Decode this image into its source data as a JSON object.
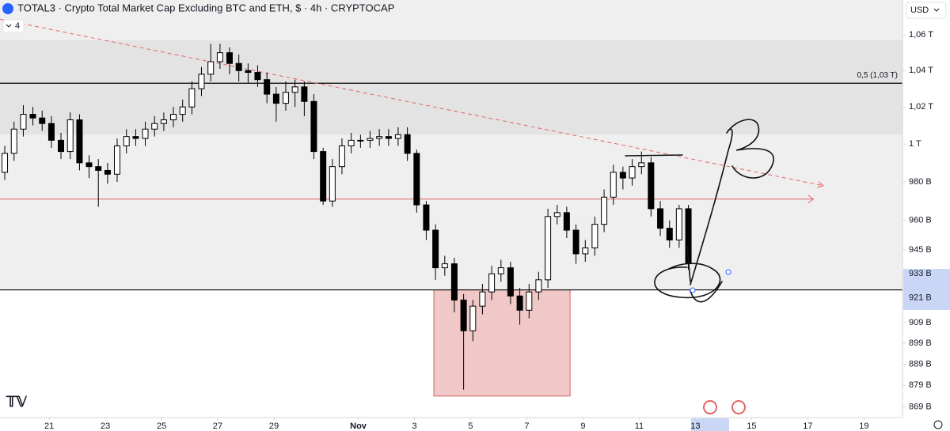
{
  "chart_data": {
    "type": "candlestick",
    "title": "TOTAL3 · Crypto Total Market Cap Excluding BTC and ETH, $ · 4h · CRYPTOCAP",
    "indicator_count": "4",
    "currency": "USD",
    "log_scale": true,
    "up_color": "#ffffff",
    "down_color": "#000000",
    "xlim": [
      -1.75,
      30.37
    ],
    "ylim": [
      864,
      1080
    ],
    "xticks": [
      {
        "value": 0,
        "label": "21"
      },
      {
        "value": 2,
        "label": "23"
      },
      {
        "value": 4,
        "label": "25"
      },
      {
        "value": 6,
        "label": "27"
      },
      {
        "value": 8,
        "label": "29"
      },
      {
        "value": 11,
        "label": "Nov"
      },
      {
        "value": 13,
        "label": "3"
      },
      {
        "value": 15,
        "label": "5"
      },
      {
        "value": 17,
        "label": "7"
      },
      {
        "value": 19,
        "label": "9"
      },
      {
        "value": 21,
        "label": "11"
      },
      {
        "value": 23,
        "label": "13"
      },
      {
        "value": 25,
        "label": "15"
      },
      {
        "value": 27,
        "label": "17"
      },
      {
        "value": 29,
        "label": "19"
      }
    ],
    "yticks": [
      {
        "value": 1060,
        "label": "1,06 T"
      },
      {
        "value": 1040,
        "label": "1,04 T"
      },
      {
        "value": 1020,
        "label": "1,02 T"
      },
      {
        "value": 1000,
        "label": "1 T"
      },
      {
        "value": 980,
        "label": "980 B"
      },
      {
        "value": 960,
        "label": "960 B"
      },
      {
        "value": 945,
        "label": "945 B"
      },
      {
        "value": 933,
        "label": "933 B"
      },
      {
        "value": 921,
        "label": "921 B"
      },
      {
        "value": 909,
        "label": "909 B"
      },
      {
        "value": 899,
        "label": "899 B"
      },
      {
        "value": 889,
        "label": "889 B"
      },
      {
        "value": 879,
        "label": "879 B"
      },
      {
        "value": 869,
        "label": "869 B"
      }
    ],
    "zones": [
      {
        "from": 925,
        "to": 1080,
        "color": "#efefef"
      },
      {
        "from": 1005,
        "to": 1057,
        "color": "#e3e3e3"
      }
    ],
    "levels": [
      {
        "value": 1033,
        "label": "0,5 (1,03 T)",
        "color": "#000000"
      },
      {
        "value": 925,
        "color": "#000000"
      }
    ],
    "arrow": {
      "value": 971,
      "x": [
        -1.75,
        27.2
      ],
      "color": "#e06666"
    },
    "trendline": {
      "x": [
        -1.75,
        27.55
      ],
      "values": [
        1069,
        978
      ],
      "color": "#e06666"
    },
    "box": {
      "x": [
        13.69,
        18.54
      ],
      "values": [
        925,
        874
      ],
      "color": "#e8a4a4"
    },
    "x": [
      -1.58,
      -1.25,
      -0.92,
      -0.58,
      -0.25,
      0.08,
      0.42,
      0.75,
      1.08,
      1.42,
      1.75,
      2.08,
      2.42,
      2.75,
      3.08,
      3.42,
      3.75,
      4.08,
      4.42,
      4.75,
      5.08,
      5.42,
      5.75,
      6.08,
      6.42,
      6.75,
      7.08,
      7.42,
      7.75,
      8.08,
      8.42,
      8.75,
      9.08,
      9.42,
      9.75,
      10.08,
      10.42,
      10.75,
      11.08,
      11.42,
      11.75,
      12.08,
      12.42,
      12.75,
      13.08,
      13.42,
      13.75,
      14.08,
      14.42,
      14.75,
      15.08,
      15.42,
      15.75,
      16.08,
      16.42,
      16.75,
      17.08,
      17.42,
      17.75,
      18.08,
      18.42,
      18.75,
      19.08,
      19.42,
      19.75,
      20.08,
      20.42,
      20.75,
      21.08,
      21.42,
      21.75,
      22.08,
      22.42,
      22.75
    ],
    "open": [
      985,
      995,
      1008,
      1016,
      1014,
      1011,
      1002,
      996,
      1013,
      990,
      988,
      986,
      984,
      999,
      1004,
      1003,
      1008,
      1011,
      1013,
      1016,
      1020,
      1030,
      1038,
      1045,
      1050,
      1044,
      1040,
      1039,
      1035,
      1027,
      1022,
      1028,
      1031,
      1023,
      996,
      970,
      988,
      999,
      1002,
      1002,
      1003,
      1004,
      1003,
      1005,
      995,
      968,
      955,
      936,
      938,
      920,
      905,
      917,
      924,
      933,
      936,
      922,
      915,
      924,
      930,
      962,
      964,
      955,
      943,
      946,
      958,
      972,
      985,
      982,
      988,
      990,
      966,
      956,
      950,
      966
    ],
    "high": [
      999,
      1012,
      1021,
      1020,
      1018,
      1015,
      1006,
      1017,
      1016,
      994,
      992,
      990,
      1003,
      1008,
      1008,
      1012,
      1015,
      1017,
      1020,
      1024,
      1034,
      1042,
      1055,
      1055,
      1053,
      1049,
      1044,
      1043,
      1039,
      1031,
      1034,
      1035,
      1034,
      1027,
      998,
      992,
      1003,
      1006,
      1005,
      1007,
      1008,
      1008,
      1009,
      1009,
      997,
      970,
      958,
      942,
      941,
      923,
      920,
      928,
      937,
      940,
      939,
      926,
      928,
      934,
      966,
      968,
      967,
      958,
      950,
      962,
      976,
      989,
      988,
      992,
      996,
      993,
      970,
      960,
      968,
      968
    ],
    "low": [
      981,
      991,
      1004,
      1010,
      1007,
      998,
      992,
      992,
      986,
      982,
      967,
      979,
      980,
      995,
      999,
      999,
      1004,
      1007,
      1009,
      1012,
      1016,
      1026,
      1034,
      1041,
      1038,
      1034,
      1033,
      1031,
      1022,
      1012,
      1018,
      1020,
      1015,
      992,
      968,
      967,
      984,
      995,
      998,
      998,
      999,
      999,
      999,
      991,
      964,
      950,
      930,
      932,
      914,
      877,
      900,
      913,
      920,
      929,
      918,
      908,
      911,
      920,
      926,
      958,
      951,
      938,
      939,
      942,
      954,
      968,
      976,
      978,
      984,
      962,
      952,
      946,
      946,
      935
    ],
    "close": [
      995,
      1008,
      1016,
      1014,
      1011,
      1002,
      996,
      1013,
      990,
      988,
      986,
      984,
      999,
      1004,
      1003,
      1008,
      1011,
      1013,
      1016,
      1020,
      1030,
      1038,
      1045,
      1050,
      1044,
      1040,
      1039,
      1035,
      1027,
      1022,
      1028,
      1031,
      1023,
      996,
      970,
      988,
      999,
      1002,
      1002,
      1003,
      1004,
      1003,
      1005,
      995,
      968,
      955,
      936,
      938,
      920,
      905,
      917,
      924,
      933,
      936,
      922,
      915,
      924,
      930,
      962,
      964,
      955,
      943,
      946,
      958,
      972,
      985,
      982,
      988,
      990,
      966,
      956,
      950,
      966,
      938
    ]
  }
}
